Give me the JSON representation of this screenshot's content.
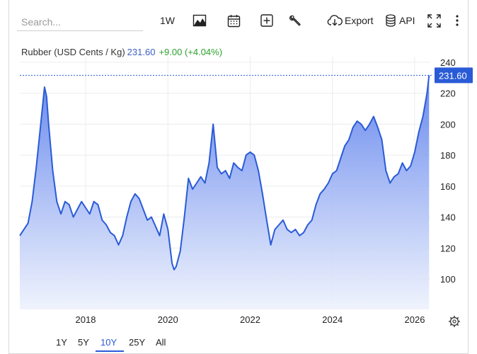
{
  "toolbar": {
    "search_placeholder": "Search...",
    "interval_label": "1W",
    "export_label": "Export",
    "api_label": "API"
  },
  "legend": {
    "name": "Rubber (USD Cents / Kg)",
    "value": "231.60",
    "change": "+9.00 (+4.04%)"
  },
  "ranges": [
    "1Y",
    "5Y",
    "10Y",
    "25Y",
    "All"
  ],
  "active_range": "10Y",
  "colors": {
    "line": "#2a5bd7",
    "fill_top": "#5f82ec",
    "fill_bottom": "#eef2fd",
    "positive": "#2ea12e",
    "price_tag": "#2a5bd7"
  },
  "chart_data": {
    "type": "area",
    "title": "Rubber (USD Cents / Kg)",
    "last_value": 231.6,
    "last_value_label": "231.60",
    "yticks": [
      100,
      120,
      140,
      160,
      180,
      200,
      220,
      240
    ],
    "ylim": [
      80,
      240
    ],
    "xticks": [
      2018,
      2020,
      2022,
      2024,
      2026
    ],
    "xlim": [
      2016.4,
      2026.5
    ],
    "grid": true,
    "series": [
      {
        "x": [
          2016.4,
          2016.5,
          2016.6,
          2016.7,
          2016.8,
          2016.9,
          2017.0,
          2017.05,
          2017.1,
          2017.15,
          2017.2,
          2017.3,
          2017.4,
          2017.5,
          2017.6,
          2017.7,
          2017.8,
          2017.9,
          2018.0,
          2018.1,
          2018.2,
          2018.3,
          2018.4,
          2018.5,
          2018.6,
          2018.7,
          2018.8,
          2018.9,
          2019.0,
          2019.1,
          2019.2,
          2019.3,
          2019.4,
          2019.5,
          2019.6,
          2019.7,
          2019.8,
          2019.9,
          2020.0,
          2020.1,
          2020.15,
          2020.2,
          2020.3,
          2020.4,
          2020.5,
          2020.6,
          2020.7,
          2020.8,
          2020.9,
          2021.0,
          2021.1,
          2021.2,
          2021.3,
          2021.4,
          2021.5,
          2021.6,
          2021.7,
          2021.8,
          2021.9,
          2022.0,
          2022.1,
          2022.2,
          2022.3,
          2022.4,
          2022.5,
          2022.6,
          2022.7,
          2022.8,
          2022.9,
          2023.0,
          2023.1,
          2023.2,
          2023.3,
          2023.4,
          2023.5,
          2023.6,
          2023.7,
          2023.8,
          2023.9,
          2024.0,
          2024.1,
          2024.2,
          2024.3,
          2024.4,
          2024.5,
          2024.6,
          2024.7,
          2024.8,
          2024.9,
          2025.0,
          2025.1,
          2025.2,
          2025.3,
          2025.4,
          2025.5,
          2025.6,
          2025.7,
          2025.8,
          2025.9,
          2026.0,
          2026.1,
          2026.2,
          2026.3,
          2026.35
        ],
        "y": [
          128,
          132,
          136,
          150,
          172,
          198,
          224,
          218,
          200,
          185,
          170,
          150,
          142,
          150,
          148,
          140,
          145,
          150,
          146,
          142,
          150,
          148,
          138,
          135,
          130,
          128,
          122,
          128,
          140,
          150,
          155,
          152,
          145,
          138,
          140,
          134,
          128,
          142,
          132,
          110,
          106,
          108,
          118,
          140,
          165,
          158,
          162,
          166,
          162,
          175,
          200,
          172,
          168,
          170,
          165,
          175,
          172,
          170,
          180,
          182,
          180,
          170,
          155,
          138,
          122,
          132,
          135,
          138,
          132,
          130,
          132,
          128,
          130,
          135,
          138,
          148,
          155,
          158,
          162,
          168,
          170,
          178,
          186,
          190,
          198,
          202,
          200,
          196,
          200,
          205,
          198,
          190,
          170,
          162,
          166,
          168,
          175,
          170,
          173,
          182,
          195,
          205,
          220,
          231.6
        ]
      }
    ]
  }
}
